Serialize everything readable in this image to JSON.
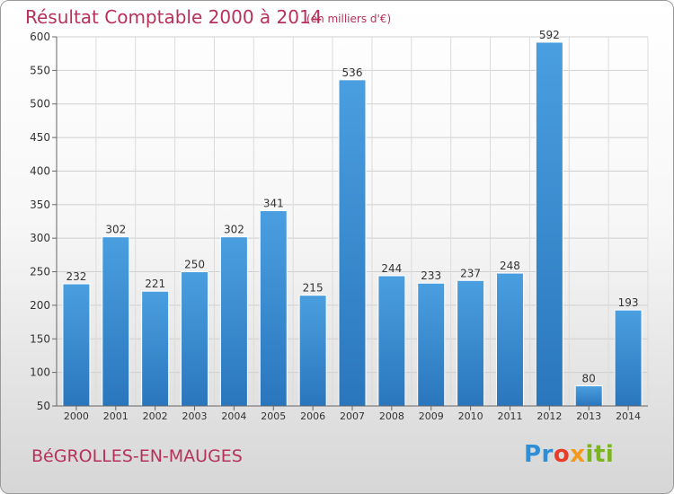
{
  "chart_data": {
    "type": "bar",
    "title": "Résultat Comptable 2000 à 2014",
    "subtitle": "(en milliers d'€)",
    "categories": [
      "2000",
      "2001",
      "2002",
      "2003",
      "2004",
      "2005",
      "2006",
      "2007",
      "2008",
      "2009",
      "2010",
      "2011",
      "2012",
      "2013",
      "2014"
    ],
    "values": [
      232,
      302,
      221,
      250,
      302,
      341,
      215,
      536,
      244,
      233,
      237,
      248,
      592,
      80,
      193
    ],
    "ylim": [
      50,
      600
    ],
    "yticks": [
      50,
      100,
      150,
      200,
      250,
      300,
      350,
      400,
      450,
      500,
      550,
      600
    ],
    "grid": true,
    "bar_color": "#4a9fe0",
    "bar_color_dark": "#2a76bd",
    "xlabel": "",
    "ylabel": ""
  },
  "commune": "BéGROLLES-EN-MAUGES",
  "logo": {
    "part1": "Pr",
    "part2": "o",
    "part3": "x",
    "part4": "iti"
  }
}
